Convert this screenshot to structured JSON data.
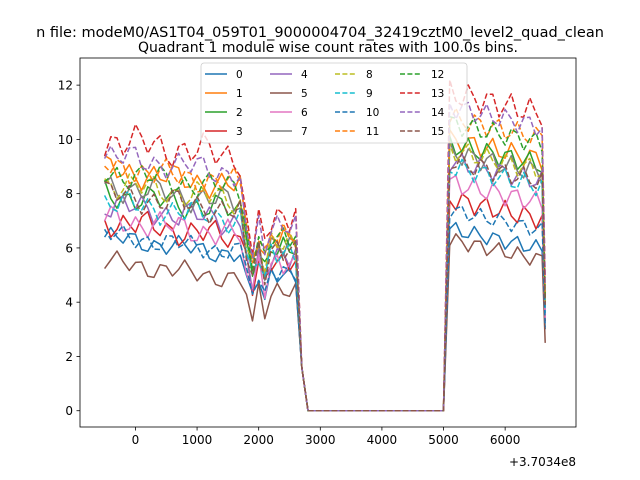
{
  "suptitle": "n file: modeM0/AS1T04_059T01_9000004704_32419cztM0_level2_quad_clean",
  "chart_data": {
    "type": "line",
    "title": "Quadrant 1 module wise count rates with 100.0s bins.",
    "xlabel": "",
    "ylabel": "",
    "x_offset_label": "+3.7034e8",
    "xlim": [
      -900,
      7150
    ],
    "ylim": [
      -0.6,
      13.0
    ],
    "x_ticks": [
      0,
      1000,
      2000,
      3000,
      4000,
      5000,
      6000
    ],
    "x_tick_labels": [
      "0",
      "1000",
      "2000",
      "3000",
      "4000",
      "5000",
      "6000"
    ],
    "y_ticks": [
      0,
      2,
      4,
      6,
      8,
      10,
      12
    ],
    "y_tick_labels": [
      "0",
      "2",
      "4",
      "6",
      "8",
      "10",
      "12"
    ],
    "grid": false,
    "legend_position": "top-center",
    "legend_columns": 4,
    "segment_x": {
      "a": [
        -500,
        -400,
        -300,
        -200,
        -100,
        0,
        100,
        200,
        300,
        400,
        500,
        600,
        700,
        800,
        900,
        1000,
        1100,
        1200,
        1300,
        1400,
        1500,
        1600,
        1700
      ],
      "b": [
        1800,
        1900,
        2000,
        2100,
        2200,
        2300,
        2400,
        2500,
        2600
      ],
      "c": [
        5100,
        5200,
        5300,
        5400,
        5500,
        5600,
        5700,
        5800,
        5900,
        6000,
        6100,
        6200,
        6300,
        6400,
        6500,
        6600
      ]
    },
    "series": [
      {
        "name": "0",
        "color": "#1f77b4",
        "dashed": false,
        "a": 6.4,
        "b": 5.0,
        "c": 6.7,
        "d": 3.0,
        "amp": 0.3
      },
      {
        "name": "1",
        "color": "#ff7f0e",
        "dashed": false,
        "a": 8.9,
        "b": 6.4,
        "c": 10.0,
        "d": 3.8,
        "amp": 0.4
      },
      {
        "name": "2",
        "color": "#2ca02c",
        "dashed": false,
        "a": 8.0,
        "b": 6.0,
        "c": 9.8,
        "d": 4.0,
        "amp": 0.4
      },
      {
        "name": "3",
        "color": "#d62728",
        "dashed": false,
        "a": 7.0,
        "b": 5.5,
        "c": 7.8,
        "d": 3.3,
        "amp": 0.4
      },
      {
        "name": "4",
        "color": "#9467bd",
        "dashed": false,
        "a": 7.6,
        "b": 5.7,
        "c": 9.2,
        "d": 3.6,
        "amp": 0.4
      },
      {
        "name": "5",
        "color": "#8c564b",
        "dashed": false,
        "a": 5.5,
        "b": 4.4,
        "c": 6.3,
        "d": 2.5,
        "amp": 0.3
      },
      {
        "name": "6",
        "color": "#e377c2",
        "dashed": false,
        "a": 7.1,
        "b": 5.4,
        "c": 8.4,
        "d": 3.4,
        "amp": 0.4
      },
      {
        "name": "7",
        "color": "#7f7f7f",
        "dashed": false,
        "a": 8.3,
        "b": 6.1,
        "c": 9.5,
        "d": 3.8,
        "amp": 0.4
      },
      {
        "name": "8",
        "color": "#bcbd22",
        "dashed": true,
        "a": 8.4,
        "b": 6.2,
        "c": 9.6,
        "d": 3.9,
        "amp": 0.4
      },
      {
        "name": "9",
        "color": "#17becf",
        "dashed": true,
        "a": 7.7,
        "b": 5.8,
        "c": 9.0,
        "d": 3.6,
        "amp": 0.4
      },
      {
        "name": "10",
        "color": "#1f77b4",
        "dashed": true,
        "a": 6.5,
        "b": 5.1,
        "c": 7.4,
        "d": 3.1,
        "amp": 0.3
      },
      {
        "name": "11",
        "color": "#ff7f0e",
        "dashed": true,
        "a": 9.0,
        "b": 6.5,
        "c": 10.8,
        "d": 4.2,
        "amp": 0.4
      },
      {
        "name": "12",
        "color": "#2ca02c",
        "dashed": true,
        "a": 8.8,
        "b": 6.4,
        "c": 10.6,
        "d": 4.1,
        "amp": 0.4
      },
      {
        "name": "13",
        "color": "#d62728",
        "dashed": true,
        "a": 10.0,
        "b": 7.1,
        "c": 11.7,
        "d": 4.9,
        "amp": 0.5
      },
      {
        "name": "14",
        "color": "#9467bd",
        "dashed": true,
        "a": 9.4,
        "b": 6.8,
        "c": 11.2,
        "d": 4.6,
        "amp": 0.4
      },
      {
        "name": "15",
        "color": "#8c564b",
        "dashed": true,
        "a": 8.0,
        "b": 5.9,
        "c": 9.2,
        "d": 3.9,
        "amp": 0.4
      }
    ]
  }
}
